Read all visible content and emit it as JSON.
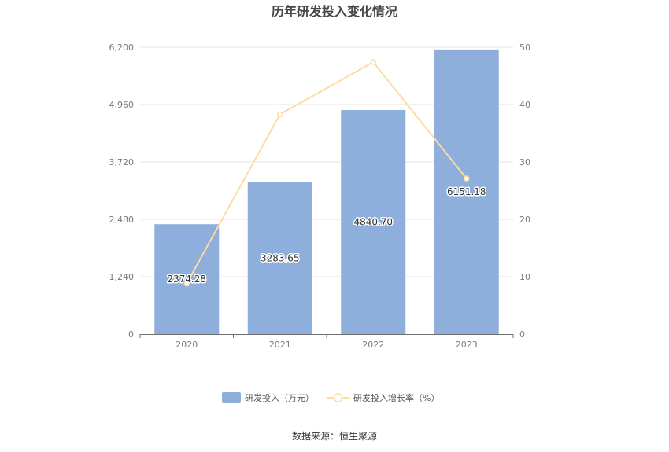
{
  "chart_data": {
    "type": "bar",
    "title": "历年研发投入变化情况",
    "categories": [
      "2020",
      "2021",
      "2022",
      "2023"
    ],
    "series": [
      {
        "name": "研发投入（万元）",
        "type": "bar",
        "axis": "left",
        "values": [
          2374.28,
          3283.65,
          4840.7,
          6151.18
        ],
        "labels": [
          "2374.28",
          "3283.65",
          "4840.70",
          "6151.18"
        ]
      },
      {
        "name": "研发投入增长率（%）",
        "type": "line",
        "axis": "right",
        "values": [
          8.8,
          38.3,
          47.4,
          27.1
        ]
      }
    ],
    "y_left": {
      "ylim": [
        0,
        6200
      ],
      "ticks": [
        "0",
        "1,240",
        "2,480",
        "3,720",
        "4,960",
        "6,200"
      ]
    },
    "y_right": {
      "ylim": [
        0,
        50
      ],
      "ticks": [
        "0",
        "10",
        "20",
        "30",
        "40",
        "50"
      ]
    },
    "grid": true,
    "legend": "bottom-center",
    "colors": {
      "bar": "#8eaedb",
      "line": "#fddd9f",
      "grid": "#e6e6e6",
      "axis": "#6e6e6e"
    }
  },
  "source": "数据来源：恒生聚源"
}
